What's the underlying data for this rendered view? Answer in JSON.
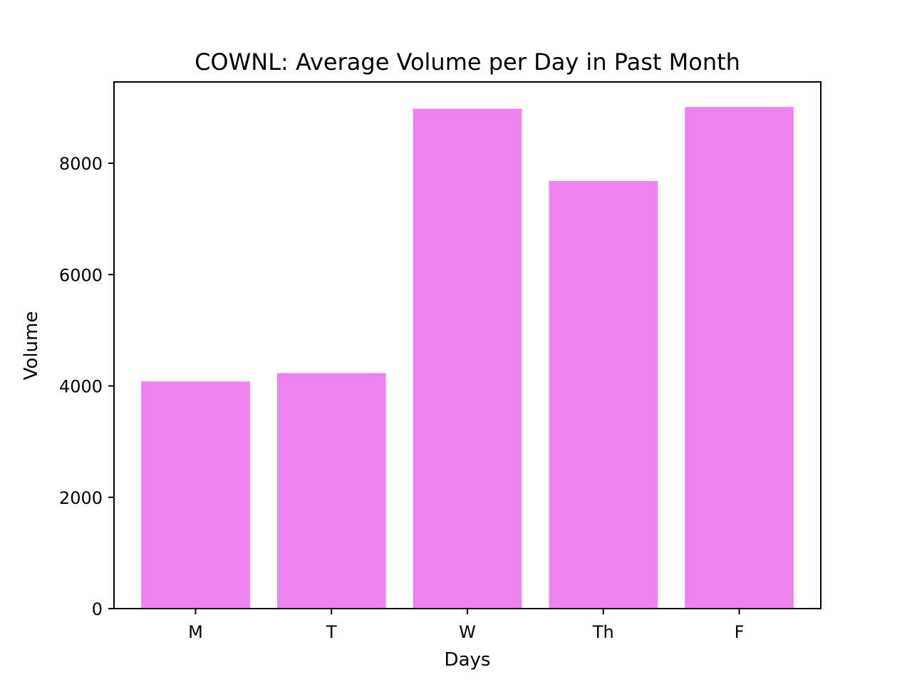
{
  "chart_data": {
    "type": "bar",
    "title": "COWNL: Average Volume per Day in Past Month",
    "xlabel": "Days",
    "ylabel": "Volume",
    "categories": [
      "M",
      "T",
      "W",
      "Th",
      "F"
    ],
    "values": [
      4080,
      4230,
      8980,
      7680,
      9010
    ],
    "ylim": [
      0,
      9460
    ],
    "yticks": [
      0,
      2000,
      4000,
      6000,
      8000
    ],
    "bar_color": "#ee82ee",
    "grid": false,
    "legend": "none"
  }
}
